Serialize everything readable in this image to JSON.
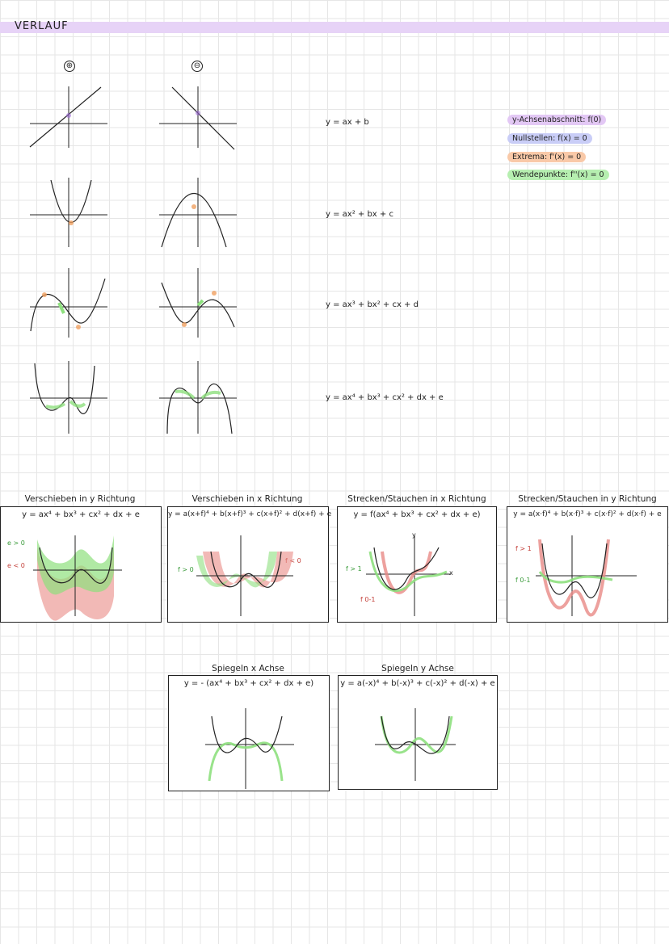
{
  "page": {
    "title": "VERLAUF"
  },
  "signs": {
    "plus": "⊕",
    "minus": "⊖"
  },
  "formulas": {
    "linear": "y = ax + b",
    "quadratic": "y = ax² + bx + c",
    "cubic": "y = ax³ + bx² + cx + d",
    "quartic": "y = ax⁴ + bx³ + cx² + dx + e"
  },
  "legend": [
    {
      "text": "y-Achsenabschnitt: f(0)",
      "color": "#e3c8f5"
    },
    {
      "text": "Nullstellen: f(x) = 0",
      "color": "#c9cdf7"
    },
    {
      "text": "Extrema: f'(x) = 0",
      "color": "#f9c9a8"
    },
    {
      "text": "Wendepunkte: f''(x) = 0",
      "color": "#b6efb0"
    }
  ],
  "transforms": [
    {
      "caption": "Verschieben in y Richtung",
      "formula": "y = ax⁴ + bx³ + cx² + dx + e",
      "labels": [
        "e > 0",
        "e < 0"
      ]
    },
    {
      "caption": "Verschieben in x Richtung",
      "formula": "y = a(x+f)⁴ + b(x+f)³ + c(x+f)² + d(x+f) + e",
      "labels": [
        "f > 0",
        "f < 0"
      ]
    },
    {
      "caption": "Strecken/Stauchen in x Richtung",
      "formula": "y = f(ax⁴ + bx³ + cx² + dx + e)",
      "labels": [
        "f > 1",
        "f 0-1",
        "x",
        "y"
      ]
    },
    {
      "caption": "Strecken/Stauchen in y Richtung",
      "formula": "y = a(x·f)⁴ + b(x·f)³ + c(x·f)² + d(x·f) + e",
      "labels": [
        "f > 1",
        "f 0-1"
      ]
    }
  ],
  "mirrors": [
    {
      "caption": "Spiegeln x Achse",
      "formula": "y = - (ax⁴ + bx³ + cx² + dx + e)"
    },
    {
      "caption": "Spiegeln y Achse",
      "formula": "y = a(-x)⁴ + b(-x)³ + c(-x)² + d(-x) + e"
    }
  ],
  "colors": {
    "green": "#8ee07e",
    "red": "#e98a86",
    "purple": "#9d6ad6",
    "orange": "#f0a060",
    "blue": "#8f96ee"
  }
}
